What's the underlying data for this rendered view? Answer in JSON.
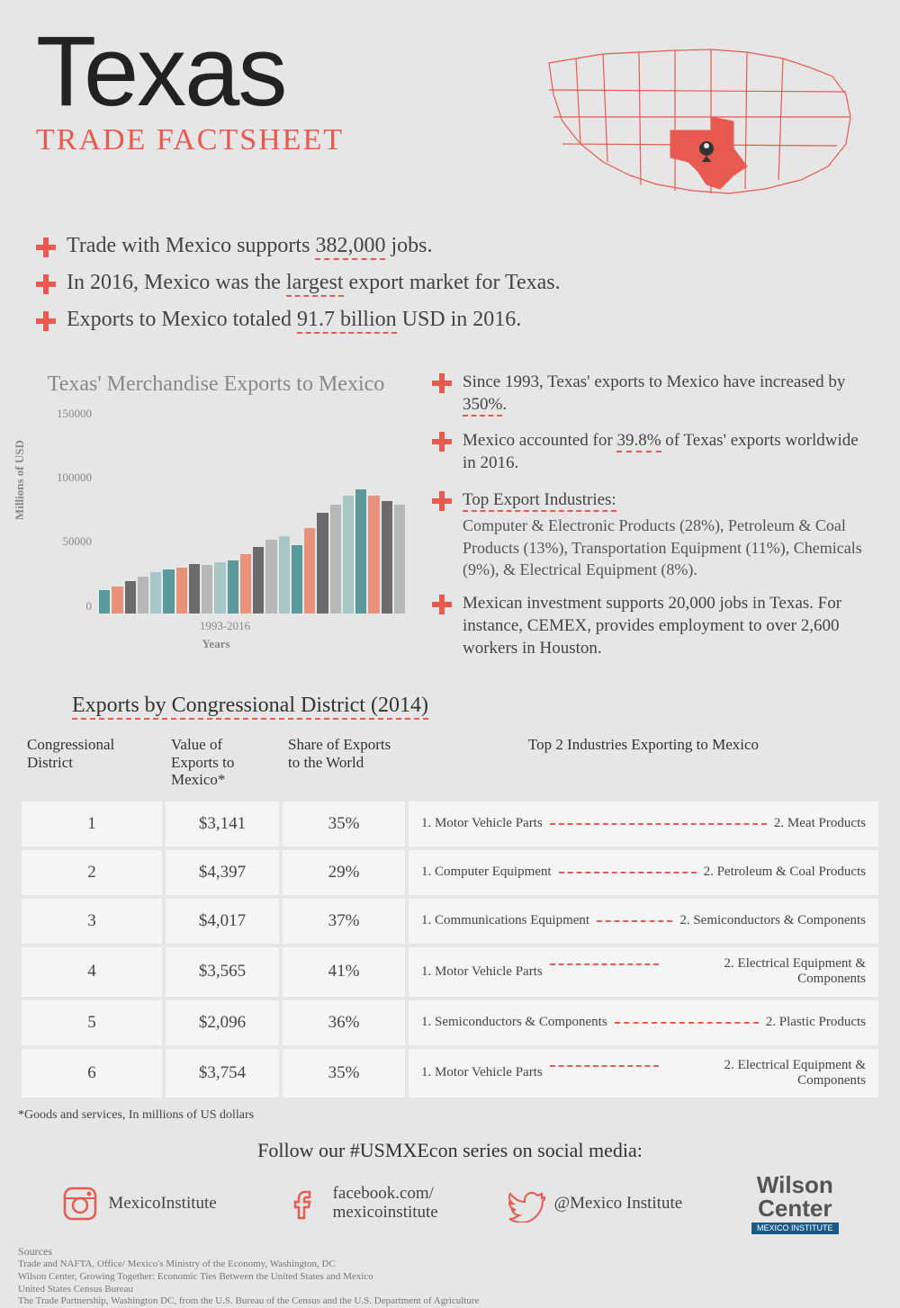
{
  "title": "Texas",
  "subtitle": "TRADE FACTSHEET",
  "colors": {
    "accent": "#e85a4f",
    "text": "#333",
    "bg": "#e6e6e6",
    "cell_bg": "#f5f5f5",
    "muted": "#888",
    "bar_teal": "#5b9a9a",
    "bar_orange": "#e8927c",
    "bar_gray": "#6b6b6b",
    "bar_ltgray": "#b8b8b8",
    "bar_ltteal": "#a8c8c8"
  },
  "top_facts": [
    {
      "before": "Trade with Mexico supports ",
      "highlight": "382,000",
      "after": " jobs."
    },
    {
      "before": "In 2016, Mexico was the ",
      "highlight": "largest",
      "after": " export market for Texas."
    },
    {
      "before": "Exports to Mexico totaled ",
      "highlight": "91.7 billion",
      "after": " USD in 2016."
    }
  ],
  "chart": {
    "title": "Texas' Merchandise Exports to Mexico",
    "y_label": "Millions of USD",
    "x_label": "Years",
    "x_range": "1993-2016",
    "ylim": [
      0,
      160000
    ],
    "y_ticks": [
      "150000",
      "100000",
      "50000",
      "0"
    ],
    "bar_colors_cycle": [
      "#5b9a9a",
      "#e8927c",
      "#6b6b6b",
      "#b8b8b8",
      "#a8c8c8"
    ],
    "values": [
      20000,
      23000,
      27000,
      31000,
      35000,
      37000,
      39000,
      42000,
      41000,
      43000,
      45000,
      50000,
      56000,
      62000,
      65000,
      58000,
      72000,
      85000,
      92000,
      100000,
      105000,
      100000,
      95000,
      92000
    ]
  },
  "right_facts": [
    {
      "type": "text",
      "parts": [
        "Since 1993, Texas' exports to Mexico have increased by ",
        "350%",
        "."
      ]
    },
    {
      "type": "text",
      "parts": [
        "Mexico accounted for ",
        "39.8%",
        " of Texas' exports worldwide in 2016."
      ]
    },
    {
      "type": "header",
      "label": "Top Export Industries:",
      "body": "Computer & Electronic Products (28%), Petroleum & Coal Products (13%), Transportation Equipment (11%), Chemicals (9%), & Electrical Equipment (8%)."
    },
    {
      "type": "plain",
      "text": "Mexican investment supports 20,000 jobs in Texas. For instance, CEMEX, provides employment to over 2,600 workers in Houston."
    }
  ],
  "table_title": "Exports by Congressional District (2014)",
  "table": {
    "columns": [
      "Congressional District",
      "Value of Exports to Mexico*",
      "Share of Exports to the World",
      "Top 2 Industries Exporting to Mexico"
    ],
    "rows": [
      {
        "d": "1",
        "v": "$3,141",
        "s": "35%",
        "i1": "1. Motor Vehicle Parts",
        "i2": "2. Meat Products"
      },
      {
        "d": "2",
        "v": "$4,397",
        "s": "29%",
        "i1": "1. Computer Equipment",
        "i2": "2. Petroleum & Coal Products"
      },
      {
        "d": "3",
        "v": "$4,017",
        "s": "37%",
        "i1": "1. Communications Equipment",
        "i2": "2. Semiconductors & Components"
      },
      {
        "d": "4",
        "v": "$3,565",
        "s": "41%",
        "i1": "1. Motor Vehicle Parts",
        "i2": "2. Electrical  Equipment & Components"
      },
      {
        "d": "5",
        "v": "$2,096",
        "s": "36%",
        "i1": "1. Semiconductors & Components",
        "i2": "2. Plastic Products"
      },
      {
        "d": "6",
        "v": "$3,754",
        "s": "35%",
        "i1": "1. Motor Vehicle Parts",
        "i2": "2. Electrical  Equipment & Components"
      }
    ]
  },
  "footnote": "*Goods and services, In millions of US dollars",
  "social": {
    "title": "Follow our #USMXEcon series on social media:",
    "instagram": "MexicoInstitute",
    "facebook_l1": "facebook.com/",
    "facebook_l2": "mexicoinstitute",
    "twitter": "@Mexico Institute"
  },
  "logo": {
    "l1": "Wilson",
    "l2": "Center",
    "l3": "MEXICO INSTITUTE"
  },
  "sources": {
    "title": "Sources",
    "lines": [
      "Trade and NAFTA, Office/ Mexico's Ministry of the Economy, Washington, DC",
      "Wilson Center, Growing Together: Economic Ties Between the United States and Mexico",
      "United States Census Bureau",
      "The Trade Partnership, Washington DC, from the U.S. Bureau of the Census and the U.S. Department of Agriculture"
    ]
  }
}
